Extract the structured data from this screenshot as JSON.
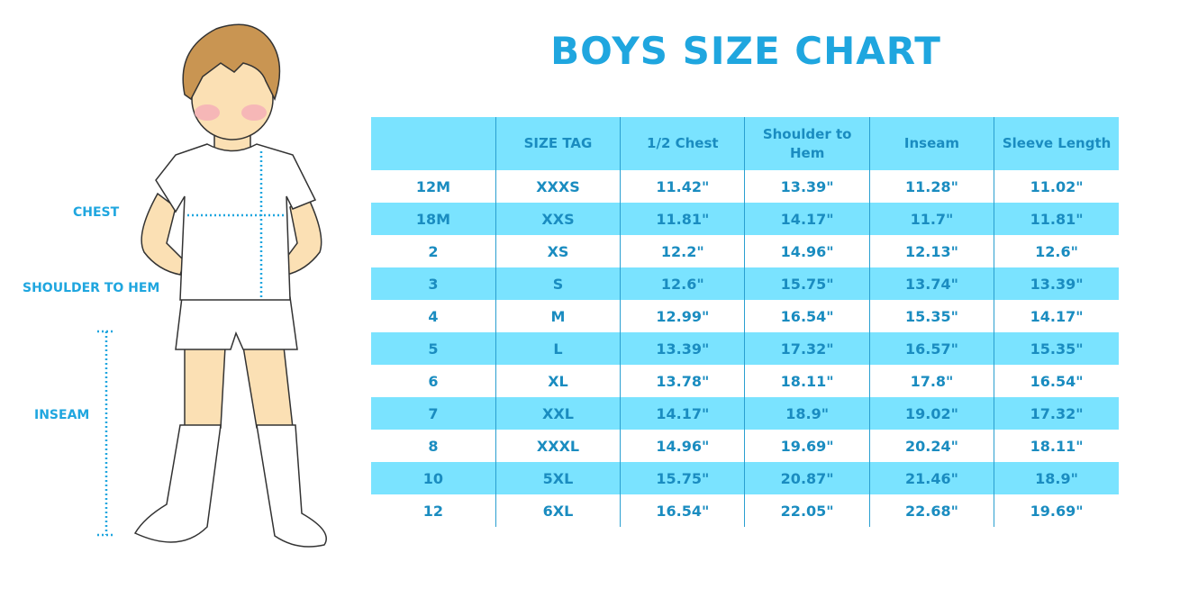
{
  "title": "BOYS SIZE CHART",
  "figure_labels": {
    "chest": "CHEST",
    "shoulder_to_hem": "SHOULDER TO HEM",
    "inseam": "INSEAM"
  },
  "colors": {
    "accent": "#1fa6df",
    "row_highlight": "#7ae3ff",
    "text": "#1a8cc0"
  },
  "table": {
    "headers": [
      "",
      "SIZE TAG",
      "1/2 Chest",
      "Shoulder to Hem",
      "Inseam",
      "Sleeve Length"
    ],
    "rows": [
      [
        "12M",
        "XXXS",
        "11.42\"",
        "13.39\"",
        "11.28\"",
        "11.02\""
      ],
      [
        "18M",
        "XXS",
        "11.81\"",
        "14.17\"",
        "11.7\"",
        "11.81\""
      ],
      [
        "2",
        "XS",
        "12.2\"",
        "14.96\"",
        "12.13\"",
        "12.6\""
      ],
      [
        "3",
        "S",
        "12.6\"",
        "15.75\"",
        "13.74\"",
        "13.39\""
      ],
      [
        "4",
        "M",
        "12.99\"",
        "16.54\"",
        "15.35\"",
        "14.17\""
      ],
      [
        "5",
        "L",
        "13.39\"",
        "17.32\"",
        "16.57\"",
        "15.35\""
      ],
      [
        "6",
        "XL",
        "13.78\"",
        "18.11\"",
        "17.8\"",
        "16.54\""
      ],
      [
        "7",
        "XXL",
        "14.17\"",
        "18.9\"",
        "19.02\"",
        "17.32\""
      ],
      [
        "8",
        "XXXL",
        "14.96\"",
        "19.69\"",
        "20.24\"",
        "18.11\""
      ],
      [
        "10",
        "5XL",
        "15.75\"",
        "20.87\"",
        "21.46\"",
        "18.9\""
      ],
      [
        "12",
        "6XL",
        "16.54\"",
        "22.05\"",
        "22.68\"",
        "19.69\""
      ]
    ]
  }
}
